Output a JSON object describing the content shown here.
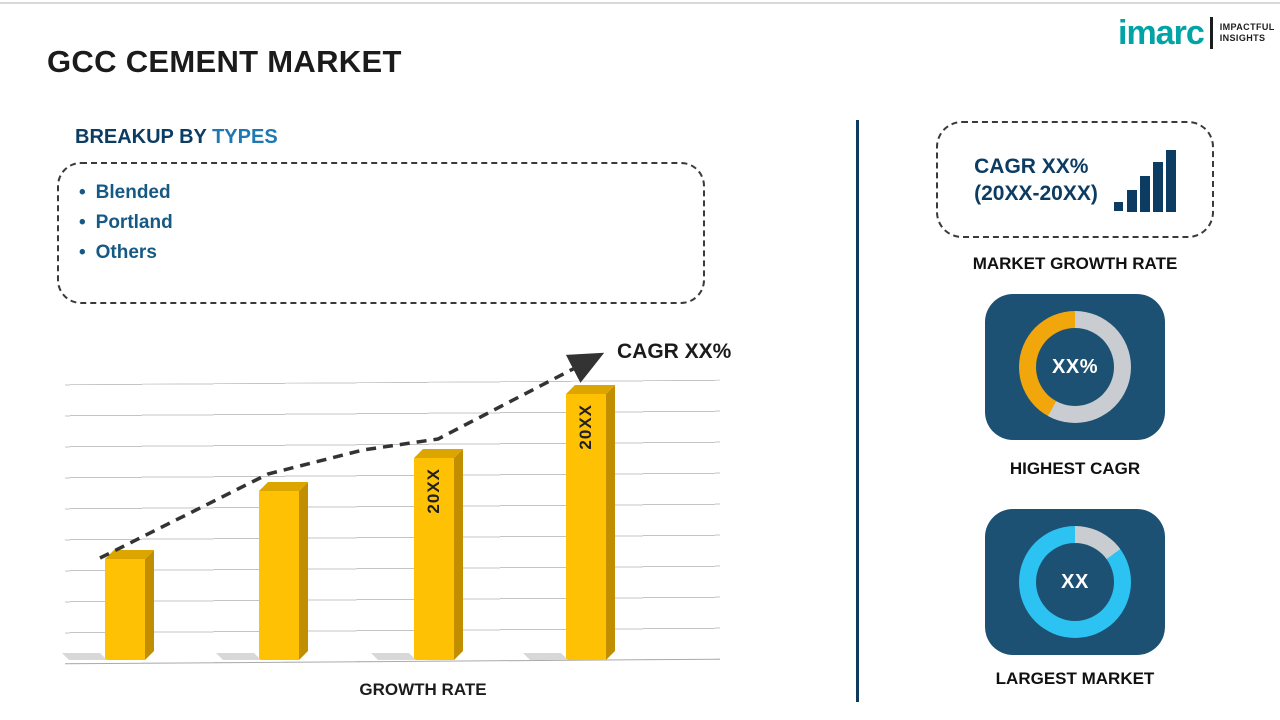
{
  "meta": {
    "title": "GCC CEMENT MARKET"
  },
  "logo": {
    "brand": "imarc",
    "tagline_line1": "IMPACTFUL",
    "tagline_line2": "INSIGHTS",
    "brand_color": "#00A3A6"
  },
  "breakup": {
    "heading_prefix": "BREAKUP BY ",
    "heading_highlight": "TYPES",
    "items": [
      {
        "label": "Blended"
      },
      {
        "label": "Portland"
      },
      {
        "label": "Others"
      }
    ]
  },
  "chart_data": [
    {
      "type": "bar",
      "title": "",
      "xlabel": "GROWTH RATE",
      "ylabel": "",
      "categories": [
        "",
        "",
        "20XX",
        "20XX"
      ],
      "values": [
        27,
        45,
        54,
        71
      ],
      "ylim": [
        0,
        100
      ],
      "bar_color": "#FFC103",
      "trend_label": "CAGR XX%"
    },
    {
      "type": "pie",
      "variant": "donut",
      "center_label": "XX%",
      "caption": "HIGHEST CAGR",
      "slices": [
        {
          "name": "highlight",
          "percent": 42,
          "color": "#F1A60C"
        },
        {
          "name": "remainder",
          "percent": 58,
          "color": "#C9CDD1"
        }
      ]
    },
    {
      "type": "pie",
      "variant": "donut",
      "center_label": "XX",
      "caption": "LARGEST MARKET",
      "slices": [
        {
          "name": "highlight",
          "percent": 85,
          "color": "#2CC3F2"
        },
        {
          "name": "remainder",
          "percent": 15,
          "color": "#C9CDD1"
        }
      ]
    }
  ],
  "right_panel": {
    "cagr_box": {
      "line1": "CAGR XX%",
      "line2": "(20XX-20XX)"
    },
    "market_growth_label": "MARKET GROWTH RATE",
    "card_bg": "#1D5173",
    "divider_color": "#0D3A5E"
  }
}
